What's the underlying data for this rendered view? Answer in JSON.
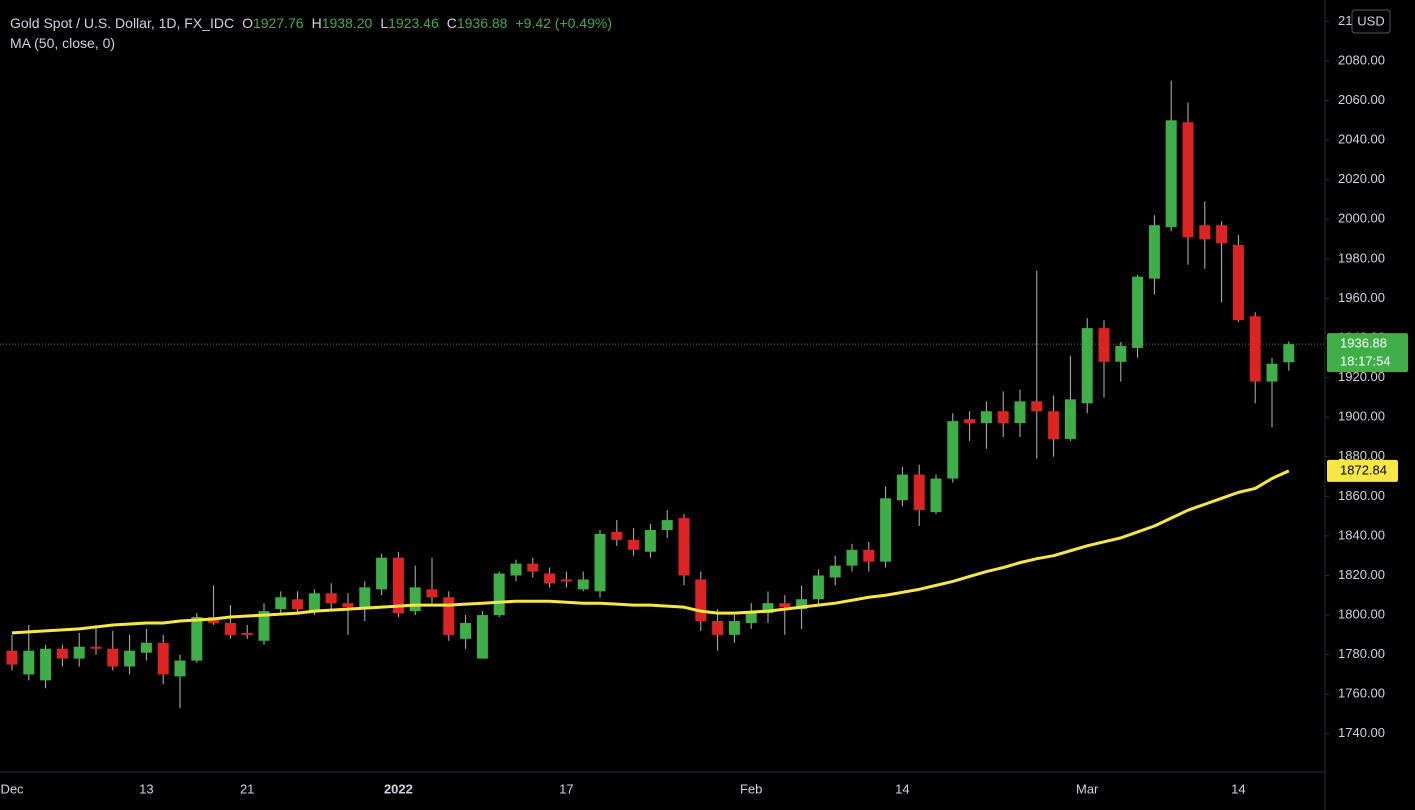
{
  "chart_data": {
    "type": "candlestick",
    "title": "Gold Spot / U.S. Dollar, 1D, FX_IDC",
    "header": {
      "open_label": "O",
      "open": "1927.76",
      "high_label": "H",
      "high": "1938.20",
      "low_label": "L",
      "low": "1923.46",
      "close_label": "C",
      "close": "1936.88",
      "change": "+9.42 (+0.49%)"
    },
    "currency": "USD",
    "last_price_label": "1936.88",
    "countdown": "18:17:54",
    "ma_label": "1872.84",
    "up_color": "#3fae49",
    "down_color": "#dc2424",
    "wick_color": "#b8b8b8",
    "grid": false,
    "categories": [
      "Dec",
      null,
      null,
      null,
      null,
      null,
      null,
      null,
      "13",
      null,
      null,
      null,
      null,
      null,
      "21",
      null,
      null,
      null,
      null,
      null,
      null,
      null,
      null,
      "2022",
      null,
      null,
      null,
      null,
      null,
      null,
      null,
      null,
      null,
      "17",
      null,
      null,
      null,
      null,
      null,
      null,
      null,
      null,
      null,
      null,
      "Feb",
      null,
      null,
      null,
      null,
      null,
      null,
      null,
      null,
      "14",
      null,
      null,
      null,
      null,
      null,
      null,
      null,
      null,
      null,
      null,
      "Mar",
      null,
      null,
      null,
      null,
      null,
      null,
      null,
      null,
      "14",
      null,
      null,
      null
    ],
    "open": [
      1782,
      1770,
      1767,
      1783,
      1778,
      1784,
      1783,
      1774,
      1781,
      1786,
      1769,
      1777,
      1799,
      1796,
      1791,
      1787,
      1803,
      1808,
      1802,
      1811,
      1806,
      1804,
      1813,
      1829,
      1802,
      1813,
      1809,
      1788,
      1778,
      1800,
      1820,
      1826,
      1821,
      1818,
      1813,
      1812,
      1842,
      1838,
      1832,
      1843,
      1849,
      1818,
      1797,
      1790,
      1796,
      1801,
      1806,
      1803,
      1808,
      1819,
      1825,
      1833,
      1827,
      1858,
      1871,
      1852,
      1869,
      1899,
      1897,
      1903,
      1897,
      1908,
      1903,
      1889,
      1907,
      1945,
      1928,
      1935,
      1970,
      1996,
      2049,
      1997,
      1997,
      1987,
      1951,
      1918,
      1927.76
    ],
    "high": [
      1790,
      1795,
      1785,
      1785,
      1791,
      1795,
      1792,
      1790,
      1793,
      1790,
      1780,
      1801,
      1815,
      1805,
      1795,
      1806,
      1812,
      1812,
      1813,
      1816,
      1811,
      1817,
      1831,
      1832,
      1825,
      1829,
      1812,
      1800,
      1802,
      1822,
      1828,
      1829,
      1824,
      1822,
      1822,
      1843,
      1848,
      1844,
      1846,
      1853,
      1851,
      1822,
      1803,
      1800,
      1806,
      1812,
      1810,
      1815,
      1823,
      1830,
      1836,
      1837,
      1865,
      1875,
      1876,
      1871,
      1902,
      1903,
      1908,
      1913,
      1914,
      1974,
      1911,
      1931,
      1950,
      1949,
      1938,
      1972,
      2002,
      2070,
      2059,
      2009,
      1999,
      1992,
      1953,
      1930,
      1938.2
    ],
    "low": [
      1772,
      1767,
      1763,
      1774,
      1774,
      1780,
      1772,
      1770,
      1777,
      1765,
      1753,
      1776,
      1795,
      1788,
      1788,
      1785,
      1800,
      1801,
      1800,
      1803,
      1790,
      1797,
      1810,
      1799,
      1800,
      1806,
      1787,
      1783,
      1778,
      1799,
      1817,
      1819,
      1814,
      1814,
      1812,
      1809,
      1835,
      1830,
      1829,
      1839,
      1815,
      1792,
      1782,
      1786,
      1793,
      1796,
      1790,
      1793,
      1805,
      1815,
      1822,
      1822,
      1824,
      1855,
      1845,
      1851,
      1867,
      1888,
      1884,
      1890,
      1890,
      1879,
      1880,
      1888,
      1902,
      1910,
      1918,
      1930,
      1962,
      1994,
      1977,
      1975,
      1958,
      1948,
      1907,
      1895,
      1923.46
    ],
    "close": [
      1775,
      1782,
      1783,
      1778,
      1784,
      1783,
      1774,
      1782,
      1786,
      1770,
      1777,
      1799,
      1796,
      1790,
      1790,
      1802,
      1809,
      1803,
      1811,
      1806,
      1804,
      1814,
      1829,
      1801,
      1814,
      1809,
      1790,
      1796,
      1800,
      1821,
      1826,
      1822,
      1816,
      1817,
      1818,
      1841,
      1838,
      1833,
      1843,
      1848,
      1820,
      1797,
      1790,
      1797,
      1802,
      1806,
      1804,
      1808,
      1820,
      1825,
      1833,
      1827,
      1859,
      1871,
      1853,
      1869,
      1898,
      1897,
      1903,
      1897,
      1908,
      1903,
      1889,
      1909,
      1945,
      1928,
      1936,
      1971,
      1997,
      2050,
      1991,
      1990,
      1988,
      1949,
      1918,
      1927,
      1936.88
    ],
    "series": [
      {
        "name": "MA (50, close, 0)",
        "color": "#f7e745",
        "values": [
          1791,
          1791.5,
          1792,
          1792.5,
          1793,
          1794,
          1795,
          1795.5,
          1796,
          1796,
          1797,
          1797.5,
          1798,
          1799,
          1799.5,
          1800,
          1800.5,
          1801,
          1802,
          1802.5,
          1803,
          1803.5,
          1804,
          1804.5,
          1805,
          1805,
          1805,
          1805.5,
          1806,
          1806.5,
          1807,
          1807,
          1807,
          1806.5,
          1806,
          1806,
          1805.5,
          1805,
          1805,
          1804.5,
          1804,
          1802,
          1801,
          1801,
          1801.5,
          1802,
          1803,
          1804,
          1805,
          1806,
          1807.5,
          1809,
          1810,
          1811.5,
          1813,
          1815,
          1817,
          1819.5,
          1822,
          1824,
          1826.5,
          1828.5,
          1830,
          1832.5,
          1835,
          1837,
          1839,
          1842,
          1845,
          1849,
          1853,
          1856,
          1859,
          1862,
          1864,
          1869,
          1872.84
        ]
      }
    ],
    "ylim": [
      1720.7,
      2110.8
    ],
    "yticks": [
      {
        "value": 1740,
        "label": "1740.00"
      },
      {
        "value": 1760,
        "label": "1760.00"
      },
      {
        "value": 1780,
        "label": "1780.00"
      },
      {
        "value": 1800,
        "label": "1800.00"
      },
      {
        "value": 1820,
        "label": "1820.00"
      },
      {
        "value": 1840,
        "label": "1840.00"
      },
      {
        "value": 1860,
        "label": "1860.00"
      },
      {
        "value": 1880,
        "label": "1880.00"
      },
      {
        "value": 1900,
        "label": "1900.00"
      },
      {
        "value": 1920,
        "label": "1920.00"
      },
      {
        "value": 1940,
        "label": "1940.00"
      },
      {
        "value": 1960,
        "label": "1960.00"
      },
      {
        "value": 1980,
        "label": "1980.00"
      },
      {
        "value": 2000,
        "label": "2000.00"
      },
      {
        "value": 2020,
        "label": "2020.00"
      },
      {
        "value": 2040,
        "label": "2040.00"
      },
      {
        "value": 2060,
        "label": "2060.00"
      },
      {
        "value": 2080,
        "label": "2080.00"
      },
      {
        "value": 2100,
        "label": "2100.00"
      }
    ]
  }
}
